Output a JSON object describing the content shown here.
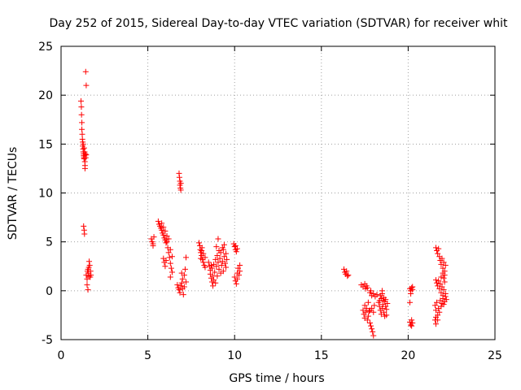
{
  "chart_data": {
    "type": "scatter",
    "title": "Day 252 of 2015, Sidereal Day-to-day VTEC variation (SDTVAR) for receiver whit",
    "xlabel": "GPS time / hours",
    "ylabel": "SDTVAR / TECUs",
    "xlim": [
      0,
      25
    ],
    "ylim": [
      -5,
      25
    ],
    "xticks": [
      0,
      5,
      10,
      15,
      20,
      25
    ],
    "yticks": [
      -5,
      0,
      5,
      10,
      15,
      20,
      25
    ],
    "xtick_labels": [
      "0",
      "5",
      "10",
      "15",
      "20",
      "25"
    ],
    "ytick_labels": [
      "-5",
      "0",
      "5",
      "10",
      "15",
      "20",
      "25"
    ],
    "grid": true,
    "marker": "+",
    "color": "#ff0000",
    "series": [
      {
        "name": "SDTVAR",
        "points": [
          [
            1.15,
            19.4
          ],
          [
            1.17,
            18.8
          ],
          [
            1.18,
            18.0
          ],
          [
            1.2,
            17.2
          ],
          [
            1.2,
            16.5
          ],
          [
            1.22,
            16.0
          ],
          [
            1.23,
            15.5
          ],
          [
            1.25,
            15.2
          ],
          [
            1.25,
            14.8
          ],
          [
            1.27,
            14.5
          ],
          [
            1.28,
            14.2
          ],
          [
            1.3,
            14.0
          ],
          [
            1.3,
            13.8
          ],
          [
            1.32,
            13.6
          ],
          [
            1.33,
            13.5
          ],
          [
            1.35,
            13.8
          ],
          [
            1.36,
            14.2
          ],
          [
            1.37,
            13.2
          ],
          [
            1.38,
            12.8
          ],
          [
            1.38,
            12.5
          ],
          [
            1.4,
            14.0
          ],
          [
            1.42,
            13.6
          ],
          [
            1.45,
            13.9
          ],
          [
            1.28,
            15.0
          ],
          [
            1.33,
            14.6
          ],
          [
            1.42,
            22.4
          ],
          [
            1.45,
            21.0
          ],
          [
            1.3,
            6.6
          ],
          [
            1.33,
            6.2
          ],
          [
            1.35,
            5.8
          ],
          [
            1.45,
            1.6
          ],
          [
            1.5,
            1.2
          ],
          [
            1.5,
            0.6
          ],
          [
            1.52,
            2.0
          ],
          [
            1.55,
            2.2
          ],
          [
            1.55,
            0.1
          ],
          [
            1.58,
            1.8
          ],
          [
            1.6,
            2.4
          ],
          [
            1.6,
            1.5
          ],
          [
            1.62,
            3.0
          ],
          [
            1.65,
            2.6
          ],
          [
            1.68,
            1.4
          ],
          [
            1.7,
            2.0
          ],
          [
            1.72,
            1.6
          ],
          [
            5.2,
            5.3
          ],
          [
            5.25,
            5.0
          ],
          [
            5.3,
            4.8
          ],
          [
            5.35,
            5.5
          ],
          [
            5.3,
            4.6
          ],
          [
            5.6,
            7.1
          ],
          [
            5.65,
            6.8
          ],
          [
            5.7,
            6.6
          ],
          [
            5.75,
            6.4
          ],
          [
            5.8,
            6.2
          ],
          [
            5.8,
            6.9
          ],
          [
            5.85,
            5.9
          ],
          [
            5.9,
            5.7
          ],
          [
            5.9,
            6.5
          ],
          [
            5.95,
            5.4
          ],
          [
            6.0,
            5.2
          ],
          [
            6.0,
            6.1
          ],
          [
            6.05,
            4.9
          ],
          [
            6.1,
            5.0
          ],
          [
            6.1,
            5.6
          ],
          [
            6.15,
            4.4
          ],
          [
            6.2,
            3.9
          ],
          [
            6.2,
            5.3
          ],
          [
            6.25,
            3.4
          ],
          [
            6.3,
            2.8
          ],
          [
            6.3,
            4.2
          ],
          [
            6.35,
            2.3
          ],
          [
            6.4,
            1.9
          ],
          [
            6.4,
            3.5
          ],
          [
            5.95,
            2.9
          ],
          [
            6.0,
            2.5
          ],
          [
            6.05,
            3.1
          ],
          [
            5.9,
            3.3
          ],
          [
            6.3,
            1.4
          ],
          [
            6.8,
            12.0
          ],
          [
            6.82,
            11.6
          ],
          [
            6.85,
            11.2
          ],
          [
            6.85,
            10.8
          ],
          [
            6.88,
            10.5
          ],
          [
            6.9,
            10.3
          ],
          [
            6.9,
            11.0
          ],
          [
            6.7,
            0.6
          ],
          [
            6.75,
            0.3
          ],
          [
            6.8,
            0.1
          ],
          [
            6.85,
            -0.2
          ],
          [
            6.9,
            0.5
          ],
          [
            6.95,
            0.8
          ],
          [
            7.0,
            0.2
          ],
          [
            7.0,
            1.2
          ],
          [
            7.05,
            -0.4
          ],
          [
            7.1,
            0.4
          ],
          [
            7.1,
            1.6
          ],
          [
            7.15,
            2.2
          ],
          [
            7.2,
            0.9
          ],
          [
            6.95,
            1.8
          ],
          [
            7.2,
            3.4
          ],
          [
            7.95,
            4.9
          ],
          [
            8.0,
            4.6
          ],
          [
            8.02,
            4.2
          ],
          [
            8.05,
            3.9
          ],
          [
            8.1,
            3.6
          ],
          [
            8.12,
            4.4
          ],
          [
            8.15,
            3.2
          ],
          [
            8.2,
            2.9
          ],
          [
            8.2,
            3.8
          ],
          [
            8.25,
            2.6
          ],
          [
            8.3,
            2.4
          ],
          [
            8.3,
            3.4
          ],
          [
            8.1,
            4.1
          ],
          [
            8.05,
            3.3
          ],
          [
            8.5,
            2.9
          ],
          [
            8.55,
            2.5
          ],
          [
            8.6,
            2.1
          ],
          [
            8.6,
            1.7
          ],
          [
            8.65,
            1.3
          ],
          [
            8.7,
            0.9
          ],
          [
            8.7,
            2.3
          ],
          [
            8.75,
            0.5
          ],
          [
            8.8,
            1.1
          ],
          [
            8.8,
            2.7
          ],
          [
            8.85,
            1.9
          ],
          [
            8.9,
            3.2
          ],
          [
            8.9,
            0.8
          ],
          [
            8.95,
            2.5
          ],
          [
            9.0,
            3.6
          ],
          [
            9.0,
            1.5
          ],
          [
            9.05,
            2.9
          ],
          [
            9.1,
            4.1
          ],
          [
            9.1,
            2.2
          ],
          [
            9.15,
            3.3
          ],
          [
            9.2,
            1.8
          ],
          [
            9.2,
            3.9
          ],
          [
            9.25,
            2.6
          ],
          [
            9.3,
            4.4
          ],
          [
            9.3,
            3.0
          ],
          [
            9.35,
            2.0
          ],
          [
            9.4,
            3.5
          ],
          [
            9.4,
            4.7
          ],
          [
            9.45,
            2.8
          ],
          [
            9.5,
            3.8
          ],
          [
            9.5,
            2.4
          ],
          [
            9.55,
            3.2
          ],
          [
            8.75,
            1.5
          ],
          [
            8.65,
            2.6
          ],
          [
            9.05,
            5.3
          ],
          [
            8.95,
            4.5
          ],
          [
            9.35,
            4.2
          ],
          [
            9.95,
            4.8
          ],
          [
            10.0,
            4.5
          ],
          [
            10.05,
            4.2
          ],
          [
            10.1,
            4.0
          ],
          [
            10.05,
            4.6
          ],
          [
            10.15,
            4.3
          ],
          [
            10.0,
            1.4
          ],
          [
            10.05,
            1.0
          ],
          [
            10.1,
            0.7
          ],
          [
            10.15,
            1.8
          ],
          [
            10.2,
            2.3
          ],
          [
            10.25,
            1.6
          ],
          [
            10.3,
            2.6
          ],
          [
            10.3,
            2.0
          ],
          [
            10.15,
            1.2
          ],
          [
            16.3,
            2.2
          ],
          [
            16.35,
            1.9
          ],
          [
            16.4,
            1.7
          ],
          [
            16.45,
            2.0
          ],
          [
            16.5,
            1.5
          ],
          [
            16.55,
            1.6
          ],
          [
            17.3,
            0.6
          ],
          [
            17.4,
            0.4
          ],
          [
            17.5,
            0.7
          ],
          [
            17.6,
            0.5
          ],
          [
            17.55,
            0.2
          ],
          [
            17.65,
            0.3
          ],
          [
            17.4,
            -2.0
          ],
          [
            17.45,
            -2.4
          ],
          [
            17.5,
            -2.8
          ],
          [
            17.55,
            -2.2
          ],
          [
            17.6,
            -1.8
          ],
          [
            17.65,
            -3.0
          ],
          [
            17.7,
            -2.6
          ],
          [
            17.75,
            -2.1
          ],
          [
            17.8,
            -3.3
          ],
          [
            17.85,
            -3.6
          ],
          [
            17.9,
            -3.9
          ],
          [
            17.95,
            -4.2
          ],
          [
            18.0,
            -4.6
          ],
          [
            17.8,
            -2.0
          ],
          [
            17.9,
            -1.8
          ],
          [
            18.0,
            -2.2
          ],
          [
            18.05,
            -1.5
          ],
          [
            17.5,
            -1.5
          ],
          [
            17.7,
            -1.2
          ],
          [
            17.8,
            -0.2
          ],
          [
            17.9,
            -0.5
          ],
          [
            18.0,
            -0.3
          ],
          [
            18.1,
            -0.6
          ],
          [
            18.2,
            -0.4
          ],
          [
            17.85,
            0.0
          ],
          [
            18.3,
            -1.2
          ],
          [
            18.35,
            -1.6
          ],
          [
            18.4,
            -2.0
          ],
          [
            18.45,
            -2.4
          ],
          [
            18.5,
            -1.8
          ],
          [
            18.55,
            -1.4
          ],
          [
            18.6,
            -2.2
          ],
          [
            18.65,
            -2.6
          ],
          [
            18.7,
            -1.6
          ],
          [
            18.75,
            -1.9
          ],
          [
            18.8,
            -1.3
          ],
          [
            18.4,
            -0.5
          ],
          [
            18.45,
            -0.8
          ],
          [
            18.5,
            -0.3
          ],
          [
            18.55,
            -1.0
          ],
          [
            18.6,
            -0.7
          ],
          [
            18.65,
            -1.1
          ],
          [
            18.7,
            -0.9
          ],
          [
            18.5,
            0.0
          ],
          [
            18.35,
            -1.0
          ],
          [
            18.75,
            -2.5
          ],
          [
            20.1,
            0.2
          ],
          [
            20.15,
            0.0
          ],
          [
            20.2,
            0.3
          ],
          [
            20.25,
            0.1
          ],
          [
            20.15,
            -0.3
          ],
          [
            20.25,
            0.4
          ],
          [
            20.1,
            -1.2
          ],
          [
            20.1,
            -3.2
          ],
          [
            20.15,
            -3.5
          ],
          [
            20.2,
            -3.6
          ],
          [
            20.25,
            -3.3
          ],
          [
            20.2,
            -3.0
          ],
          [
            21.6,
            4.4
          ],
          [
            21.65,
            4.1
          ],
          [
            21.7,
            3.8
          ],
          [
            21.75,
            4.3
          ],
          [
            21.8,
            3.5
          ],
          [
            21.85,
            3.1
          ],
          [
            21.9,
            2.7
          ],
          [
            21.95,
            3.3
          ],
          [
            22.0,
            2.3
          ],
          [
            22.05,
            2.9
          ],
          [
            22.1,
            2.0
          ],
          [
            22.1,
            1.6
          ],
          [
            22.15,
            2.6
          ],
          [
            22.05,
            1.3
          ],
          [
            21.6,
            1.1
          ],
          [
            21.65,
            0.8
          ],
          [
            21.7,
            0.5
          ],
          [
            21.75,
            1.0
          ],
          [
            21.8,
            0.2
          ],
          [
            21.85,
            0.7
          ],
          [
            21.9,
            -0.2
          ],
          [
            21.95,
            0.4
          ],
          [
            22.0,
            -0.5
          ],
          [
            22.05,
            0.1
          ],
          [
            22.1,
            0.9
          ],
          [
            22.15,
            -0.3
          ],
          [
            22.0,
            1.8
          ],
          [
            21.9,
            1.4
          ],
          [
            21.55,
            -1.5
          ],
          [
            21.6,
            -2.0
          ],
          [
            21.65,
            -1.2
          ],
          [
            21.7,
            -2.5
          ],
          [
            21.75,
            -1.8
          ],
          [
            21.8,
            -2.2
          ],
          [
            21.85,
            -1.0
          ],
          [
            21.9,
            -1.6
          ],
          [
            21.95,
            -1.3
          ],
          [
            22.0,
            -0.8
          ],
          [
            22.05,
            -1.4
          ],
          [
            22.1,
            -1.1
          ],
          [
            22.15,
            -0.6
          ],
          [
            22.2,
            -0.9
          ],
          [
            21.55,
            -3.0
          ],
          [
            21.6,
            -2.7
          ],
          [
            21.6,
            -3.4
          ],
          [
            21.7,
            -3.0
          ]
        ]
      }
    ]
  }
}
